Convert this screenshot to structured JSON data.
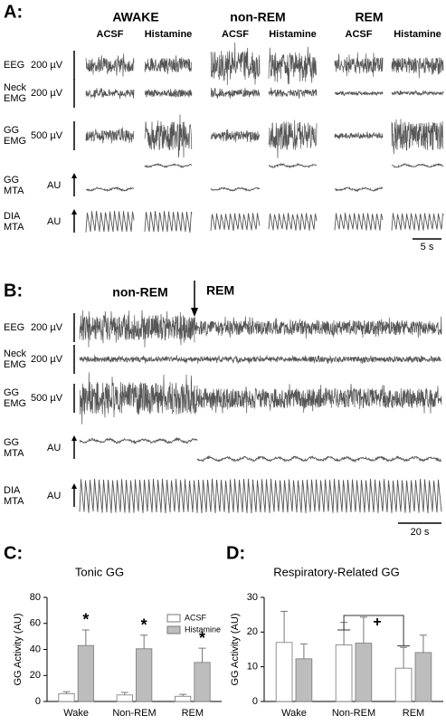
{
  "panel_a": {
    "label": "A:",
    "states": [
      "AWAKE",
      "non-REM",
      "REM"
    ],
    "conditions": [
      "ACSF",
      "Histamine",
      "ACSF",
      "Histamine",
      "ACSF",
      "Histamine"
    ],
    "rows": [
      {
        "label": [
          "EEG"
        ],
        "scale": "200 µV"
      },
      {
        "label": [
          "Neck",
          "EMG"
        ],
        "scale": "200 µV"
      },
      {
        "label": [
          "GG",
          "EMG"
        ],
        "scale": "500 µV"
      },
      {
        "label": [
          "GG",
          "MTA"
        ],
        "scale": "AU"
      },
      {
        "label": [
          "DIA",
          "MTA"
        ],
        "scale": "AU"
      }
    ],
    "time_scale": "5 s"
  },
  "panel_b": {
    "label": "B:",
    "annotations": [
      "non-REM",
      "REM"
    ],
    "rows": [
      {
        "label": [
          "EEG"
        ],
        "scale": "200 µV"
      },
      {
        "label": [
          "Neck",
          "EMG"
        ],
        "scale": "200 µV"
      },
      {
        "label": [
          "GG",
          "EMG"
        ],
        "scale": "500 µV"
      },
      {
        "label": [
          "GG",
          "MTA"
        ],
        "scale": "AU"
      },
      {
        "label": [
          "DIA",
          "MTA"
        ],
        "scale": "AU"
      }
    ],
    "time_scale": "20 s"
  },
  "chart_data": [
    {
      "type": "bar",
      "label": "C:",
      "title": "Tonic GG",
      "ylabel": "GG Activity (AU)",
      "categories": [
        "Wake",
        "Non-REM",
        "REM"
      ],
      "series": [
        {
          "name": "ACSF",
          "color": "#ffffff",
          "values": [
            6,
            5,
            4
          ],
          "errors": [
            1.5,
            2,
            1.5
          ]
        },
        {
          "name": "Histamine",
          "color": "#bdbdbd",
          "values": [
            43,
            40.5,
            30
          ],
          "errors": [
            12,
            10.5,
            11
          ]
        }
      ],
      "ylim": [
        0,
        80
      ],
      "yticks": [
        0,
        20,
        40,
        60,
        80
      ],
      "legend": "upper right",
      "annotations": [
        "*",
        "*",
        "*"
      ]
    },
    {
      "type": "bar",
      "label": "D:",
      "title": "Respiratory-Related GG",
      "ylabel": "GG Activity (AU)",
      "categories": [
        "Wake",
        "Non-REM",
        "REM"
      ],
      "series": [
        {
          "name": "ACSF",
          "color": "#ffffff",
          "values": [
            17,
            16.3,
            9.6
          ],
          "errors": [
            9,
            6.5,
            6
          ]
        },
        {
          "name": "Histamine",
          "color": "#bdbdbd",
          "values": [
            12.3,
            16.8,
            14.1
          ],
          "errors": [
            4.3,
            7.5,
            5
          ]
        }
      ],
      "ylim": [
        0,
        30
      ],
      "yticks": [
        0,
        10,
        20,
        30
      ],
      "annotations": [
        "+"
      ]
    }
  ]
}
